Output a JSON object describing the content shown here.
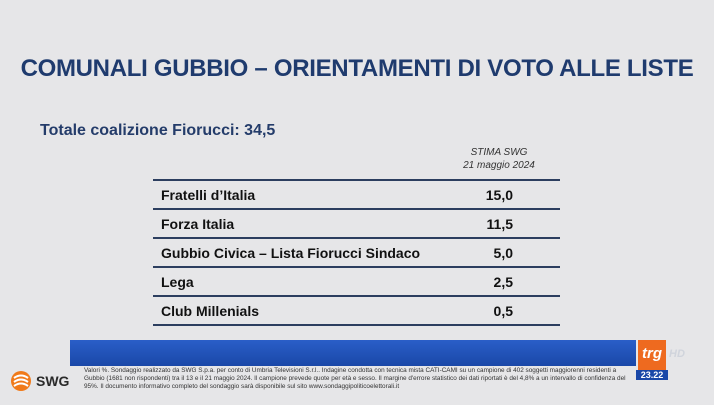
{
  "title": "COMUNALI GUBBIO – ORIENTAMENTI DI VOTO ALLE LISTE",
  "coalition": "Totale coalizione Fiorucci: 34,5",
  "estimate": {
    "source": "STIMA SWG",
    "date": "21 maggio 2024"
  },
  "table": {
    "rows": [
      {
        "label": "Fratelli d’Italia",
        "value": "15,0"
      },
      {
        "label": "Forza Italia",
        "value": "11,5"
      },
      {
        "label": "Gubbio Civica – Lista Fiorucci Sindaco",
        "value": "5,0"
      },
      {
        "label": "Lega",
        "value": "2,5"
      },
      {
        "label": "Club Millenials",
        "value": "0,5"
      }
    ]
  },
  "broadcaster": {
    "logo": "trg",
    "hd": "HD",
    "time": "23.22"
  },
  "footnote": "Valori %. Sondaggio realizzato da SWG S.p.a. per conto di Umbria Televisioni S.r.l.. Indagine condotta con tecnica mista CATI-CAMI su un campione di 402 soggetti maggiorenni residenti a Gubbio (1681 non rispondenti) tra il 13 e il 21 maggio 2024. Il campione prevede quote per età e sesso. Il margine d'errore statistico dei dati riportati è del 4,8% a un intervallo di confidenza del 95%. Il documento informativo completo del sondaggio sarà disponibile sul sito www.sondaggipoliticoelettorali.it",
  "pollster_logo": "SWG",
  "colors": {
    "title": "#1f3b6e",
    "bar": "#1a48a8",
    "logo": "#ee6a1f"
  }
}
